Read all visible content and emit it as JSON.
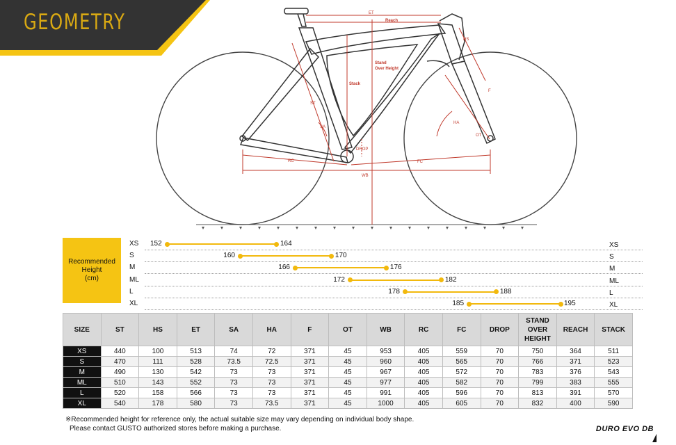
{
  "header": {
    "title": "GEOMETRY"
  },
  "diagram_labels": {
    "et": "ET",
    "reach": "Reach",
    "stack": "Stack",
    "stand_over": "Stand\nOver Height",
    "stand_line1": "Stand",
    "stand_line2": "Over Height",
    "rc": "RC",
    "fc": "FC",
    "wb": "WB",
    "ha": "HA",
    "sa": "SA",
    "st": "ST",
    "hs": "HS",
    "f": "F",
    "ot": "OT",
    "drop": "DROP"
  },
  "recommended": {
    "label_line1": "Recommended",
    "label_line2": "Height",
    "label_line3": "(cm)",
    "sizes": [
      {
        "size": "XS",
        "min": "152",
        "max": "164",
        "min_v": 152,
        "max_v": 164
      },
      {
        "size": "S",
        "min": "160",
        "max": "170",
        "min_v": 160,
        "max_v": 170
      },
      {
        "size": "M",
        "min": "166",
        "max": "176",
        "min_v": 166,
        "max_v": 176
      },
      {
        "size": "ML",
        "min": "172",
        "max": "182",
        "min_v": 172,
        "max_v": 182
      },
      {
        "size": "L",
        "min": "178",
        "max": "188",
        "min_v": 178,
        "max_v": 188
      },
      {
        "size": "XL",
        "min": "185",
        "max": "195",
        "min_v": 185,
        "max_v": 195
      }
    ]
  },
  "table": {
    "headers": [
      "SIZE",
      "ST",
      "HS",
      "ET",
      "SA",
      "HA",
      "F",
      "OT",
      "WB",
      "RC",
      "FC",
      "DROP",
      "STAND\nOVER\nHEIGHT",
      "REACH",
      "STACK"
    ],
    "rows": [
      [
        "XS",
        "440",
        "100",
        "513",
        "74",
        "72",
        "371",
        "45",
        "953",
        "405",
        "559",
        "70",
        "750",
        "364",
        "511"
      ],
      [
        "S",
        "470",
        "111",
        "528",
        "73.5",
        "72.5",
        "371",
        "45",
        "960",
        "405",
        "565",
        "70",
        "766",
        "371",
        "523"
      ],
      [
        "M",
        "490",
        "130",
        "542",
        "73",
        "73",
        "371",
        "45",
        "967",
        "405",
        "572",
        "70",
        "783",
        "376",
        "543"
      ],
      [
        "ML",
        "510",
        "143",
        "552",
        "73",
        "73",
        "371",
        "45",
        "977",
        "405",
        "582",
        "70",
        "799",
        "383",
        "555"
      ],
      [
        "L",
        "520",
        "158",
        "566",
        "73",
        "73",
        "371",
        "45",
        "991",
        "405",
        "596",
        "70",
        "813",
        "391",
        "570"
      ],
      [
        "XL",
        "540",
        "178",
        "580",
        "73",
        "73.5",
        "371",
        "45",
        "1000",
        "405",
        "605",
        "70",
        "832",
        "400",
        "590"
      ]
    ]
  },
  "footnote": {
    "line1": "※Recommended height for reference only, the actual suitable size may vary depending on individual body shape.",
    "line2": "Please contact GUSTO authorized stores before making a purchase."
  },
  "model": "DURO EVO DB",
  "colors": {
    "accent": "#f5c413",
    "dark": "#333333",
    "measure": "#c0392b"
  }
}
